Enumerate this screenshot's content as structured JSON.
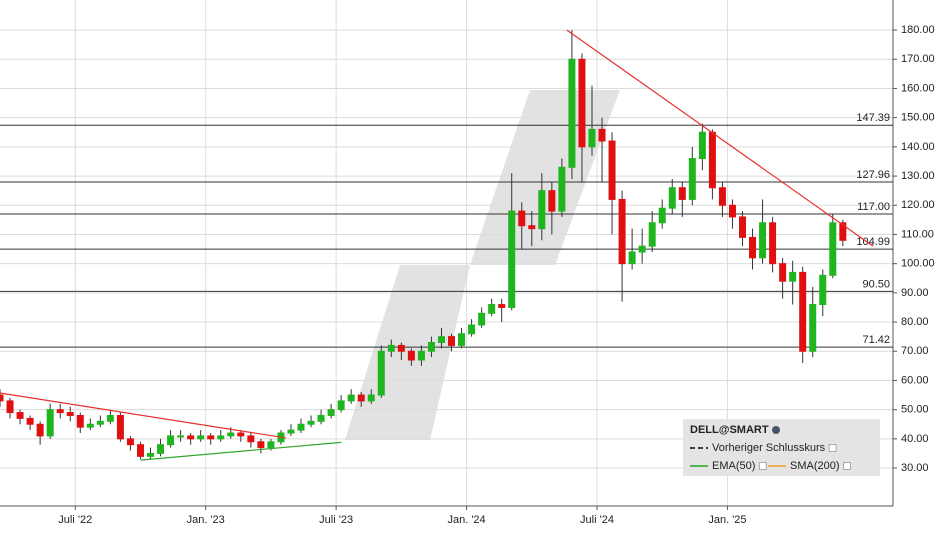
{
  "chart_data": {
    "type": "candlestick",
    "x": [
      0,
      2,
      4,
      6,
      8,
      10,
      12,
      14,
      16,
      18,
      20,
      22,
      24,
      26,
      28,
      30,
      32,
      34,
      36,
      38,
      40,
      42,
      44,
      46,
      48,
      50,
      52,
      54,
      56,
      58,
      60,
      62,
      64,
      66,
      68,
      70,
      72,
      74,
      76,
      78,
      80,
      82,
      84,
      86,
      88,
      90,
      92,
      94,
      96,
      98,
      100,
      102,
      104,
      106,
      108,
      110,
      112,
      114,
      116,
      118,
      120,
      122,
      124,
      126,
      128,
      130,
      132,
      134,
      136,
      138,
      140,
      142,
      144,
      146,
      148,
      150,
      152,
      154,
      156,
      158,
      160,
      162,
      164,
      166,
      168
    ],
    "open": [
      55,
      53,
      49,
      47,
      45,
      41,
      50,
      49,
      48,
      44,
      45,
      46,
      48,
      40,
      38,
      34,
      35,
      38,
      41,
      41,
      40,
      41,
      40,
      41,
      42,
      41,
      39,
      37,
      39,
      42,
      43,
      45,
      46,
      48,
      50,
      53,
      55,
      53,
      55,
      70,
      72,
      70,
      67,
      70,
      73,
      75,
      72,
      76,
      79,
      83,
      86,
      85,
      118,
      113,
      112,
      125,
      118,
      133,
      170,
      140,
      146,
      142,
      122,
      100,
      104,
      106,
      114,
      119,
      126,
      122,
      136,
      145,
      126,
      120,
      116,
      109,
      102,
      114,
      100,
      94,
      97,
      70,
      86,
      96,
      114
    ],
    "high": [
      57,
      54,
      50,
      48,
      46,
      52,
      52,
      51,
      49,
      47,
      48,
      50,
      49,
      41,
      39,
      37,
      40,
      43,
      43,
      42,
      43,
      42,
      43,
      44,
      43,
      42,
      40,
      40,
      43,
      45,
      47,
      48,
      50,
      52,
      55,
      57,
      56,
      57,
      72,
      74,
      73,
      71,
      72,
      75,
      78,
      76,
      78,
      81,
      85,
      88,
      88,
      131,
      121,
      118,
      131,
      128,
      136,
      180,
      172,
      161,
      150,
      145,
      125,
      112,
      112,
      118,
      122,
      129,
      128,
      140,
      148,
      146,
      128,
      122,
      118,
      112,
      122,
      116,
      102,
      101,
      99,
      92,
      98,
      117,
      115
    ],
    "low": [
      51,
      47,
      45,
      43,
      38,
      40,
      47,
      46,
      42,
      43,
      44,
      45,
      39,
      36,
      33,
      33,
      34,
      37,
      39,
      38,
      39,
      38,
      39,
      40,
      39,
      37,
      35,
      36,
      38,
      41,
      42,
      44,
      45,
      47,
      49,
      52,
      51,
      52,
      54,
      68,
      67,
      65,
      65,
      68,
      71,
      70,
      71,
      75,
      78,
      82,
      80,
      84,
      105,
      106,
      108,
      110,
      116,
      129,
      128,
      137,
      128,
      110,
      87,
      98,
      100,
      104,
      112,
      117,
      116,
      120,
      132,
      122,
      116,
      112,
      106,
      98,
      100,
      97,
      88,
      86,
      66,
      68,
      82,
      95,
      106
    ],
    "close": [
      53,
      49,
      47,
      45,
      41,
      50,
      49,
      48,
      44,
      45,
      46,
      48,
      40,
      38,
      34,
      35,
      38,
      41,
      41,
      40,
      41,
      40,
      41,
      42,
      41,
      39,
      37,
      39,
      42,
      43,
      45,
      46,
      48,
      50,
      53,
      55,
      53,
      55,
      70,
      72,
      70,
      67,
      70,
      73,
      75,
      72,
      76,
      79,
      83,
      86,
      85,
      118,
      113,
      112,
      125,
      118,
      133,
      170,
      140,
      146,
      142,
      122,
      100,
      104,
      106,
      114,
      119,
      126,
      122,
      136,
      145,
      126,
      120,
      116,
      109,
      102,
      114,
      100,
      94,
      97,
      70,
      86,
      96,
      114,
      108
    ],
    "up_color": "#1fb51f",
    "down_color": "#e01010",
    "xlim": [
      0,
      178
    ],
    "ylim": [
      17,
      190.3
    ],
    "xticks": [
      {
        "value": 15,
        "label": "Juli '22"
      },
      {
        "value": 41,
        "label": "Jan. '23"
      },
      {
        "value": 67,
        "label": "Juli '23"
      },
      {
        "value": 93,
        "label": "Jan. '24"
      },
      {
        "value": 119,
        "label": "Juli '24"
      },
      {
        "value": 145,
        "label": "Jan. '25"
      }
    ],
    "yticks": [
      {
        "value": 30,
        "label": "30.00"
      },
      {
        "value": 40,
        "label": "40.00"
      },
      {
        "value": 50,
        "label": "50.00"
      },
      {
        "value": 60,
        "label": "60.00"
      },
      {
        "value": 70,
        "label": "70.00"
      },
      {
        "value": 80,
        "label": "80.00"
      },
      {
        "value": 90,
        "label": "90.00"
      },
      {
        "value": 100,
        "label": "100.00"
      },
      {
        "value": 110,
        "label": "110.00"
      },
      {
        "value": 120,
        "label": "120.00"
      },
      {
        "value": 130,
        "label": "130.00"
      },
      {
        "value": 140,
        "label": "140.00"
      },
      {
        "value": 150,
        "label": "150.00"
      },
      {
        "value": 160,
        "label": "160.00"
      },
      {
        "value": 170,
        "label": "170.00"
      },
      {
        "value": 180,
        "label": "180.00"
      }
    ],
    "grid": true,
    "horizontal_lines": {
      "values": [
        147.39,
        127.96,
        117,
        104.99,
        90.5,
        71.42
      ],
      "value_labels": [
        "147.39",
        "127.96",
        "117.00",
        "104.99",
        "90.50",
        "71.42"
      ],
      "color": "#333333"
    },
    "trend_lines": [
      {
        "color": "#e83030",
        "x": [
          113,
          174
        ],
        "values": [
          180,
          106
        ]
      },
      {
        "color": "#e83030",
        "x": [
          0,
          57
        ],
        "values": [
          55.7,
          40.3
        ]
      },
      {
        "color": "#2fa82f",
        "x": [
          28,
          68
        ],
        "values": [
          32.7,
          38.8
        ]
      }
    ],
    "legend": {
      "title": "DELL@SMART",
      "items": [
        {
          "name": "Vorheriger Schlusskurs",
          "color": "#000000"
        },
        {
          "name": "EMA(50)",
          "color": "#22aa22"
        },
        {
          "name": "SMA(200)",
          "color": "#f0a030"
        }
      ]
    }
  }
}
